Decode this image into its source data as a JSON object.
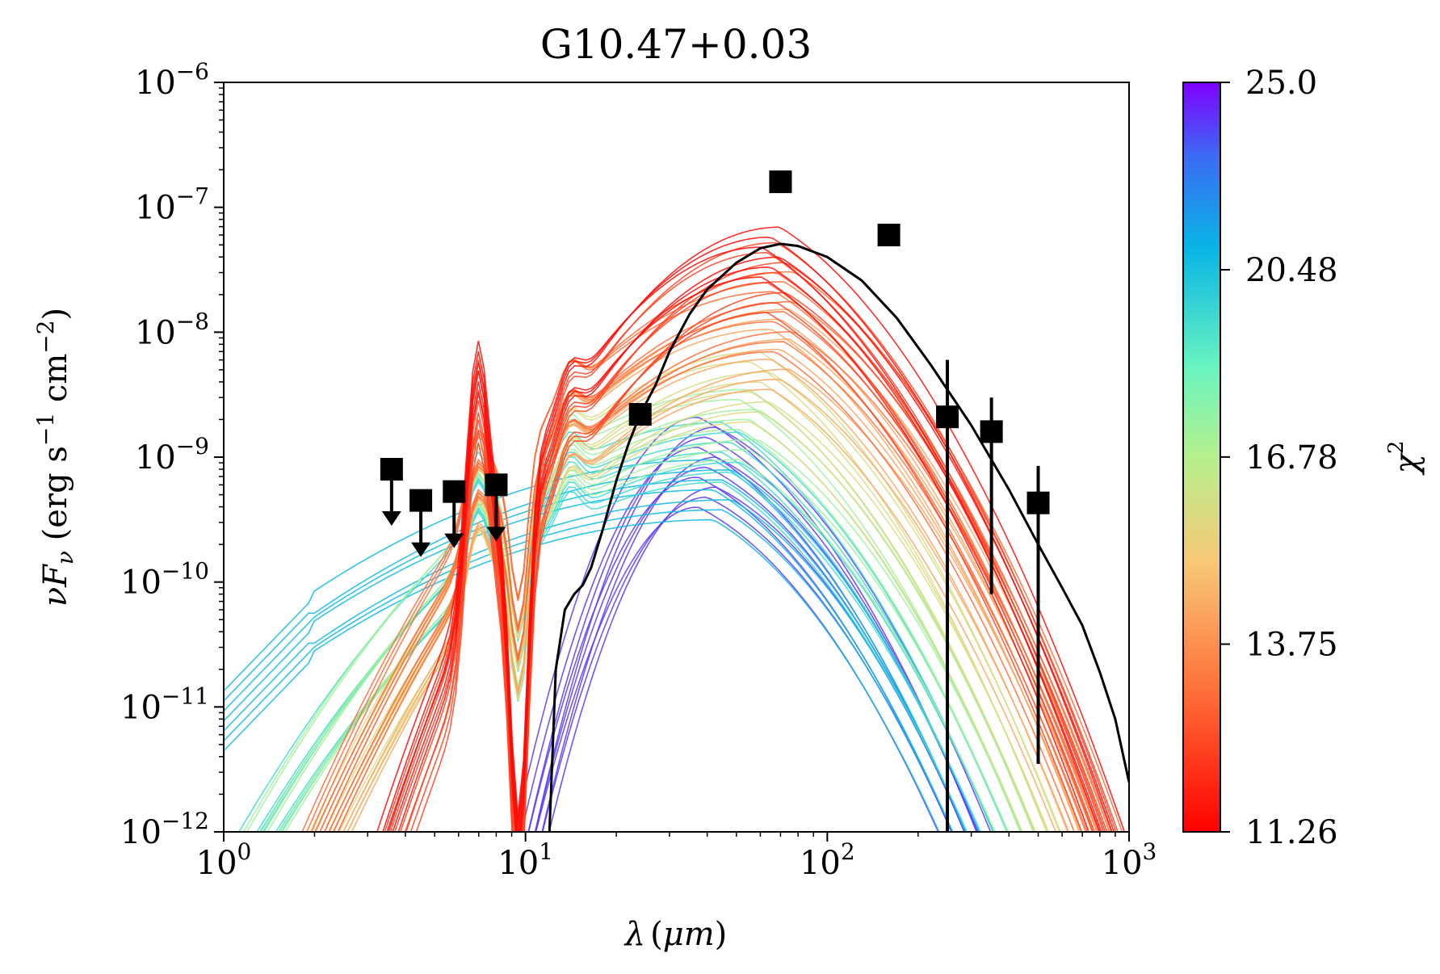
{
  "chart_data": {
    "type": "line",
    "title": "G10.47+0.03",
    "x_scale": "log",
    "y_scale": "log",
    "xlim": [
      1,
      1000
    ],
    "ylim": [
      1e-12,
      1e-06
    ],
    "xlabel_parts": {
      "symbol": "λ",
      "open": "(",
      "unit": "μm",
      "close": ")"
    },
    "ylabel_parts": {
      "nu": "ν",
      "F": "F",
      "sub": "ν",
      "open": " (erg s",
      "exp1": "−1",
      "mid": " cm",
      "exp2": "−2",
      "close": ")"
    },
    "x_ticks": [
      {
        "base": "10",
        "exp": "0",
        "value": 1
      },
      {
        "base": "10",
        "exp": "1",
        "value": 10
      },
      {
        "base": "10",
        "exp": "2",
        "value": 100
      },
      {
        "base": "10",
        "exp": "3",
        "value": 1000
      }
    ],
    "y_ticks": [
      {
        "base": "10",
        "exp": "−12",
        "value": 1e-12
      },
      {
        "base": "10",
        "exp": "−11",
        "value": 1e-11
      },
      {
        "base": "10",
        "exp": "−10",
        "value": 1e-10
      },
      {
        "base": "10",
        "exp": "−9",
        "value": 1e-09
      },
      {
        "base": "10",
        "exp": "−8",
        "value": 1e-08
      },
      {
        "base": "10",
        "exp": "−7",
        "value": 1e-07
      },
      {
        "base": "10",
        "exp": "−6",
        "value": 1e-06
      }
    ],
    "colorbar": {
      "label_base": "χ",
      "label_exp": "2",
      "colormap": "rainbow",
      "vmin": 11.26,
      "vmax": 25.0,
      "ticks": [
        "25.0",
        "20.48",
        "16.78",
        "13.75",
        "11.26"
      ]
    },
    "observed": [
      {
        "x": 3.6,
        "y": 8e-10,
        "upper_limit": true
      },
      {
        "x": 4.5,
        "y": 4.5e-10,
        "upper_limit": true
      },
      {
        "x": 5.8,
        "y": 5.3e-10,
        "upper_limit": true
      },
      {
        "x": 8.0,
        "y": 6e-10,
        "upper_limit": true
      },
      {
        "x": 24,
        "y": 2.2e-09,
        "upper_limit": false
      },
      {
        "x": 70,
        "y": 1.6e-07,
        "upper_limit": false
      },
      {
        "x": 160,
        "y": 6e-08,
        "upper_limit": false
      },
      {
        "x": 250,
        "y": 2.1e-09,
        "yerr_low": 1e-12,
        "yerr_high": 6e-09,
        "upper_limit": false
      },
      {
        "x": 350,
        "y": 1.6e-09,
        "yerr_low": 8e-11,
        "yerr_high": 3e-09,
        "upper_limit": false
      },
      {
        "x": 500,
        "y": 4.3e-10,
        "yerr_low": 3.5e-12,
        "yerr_high": 8.5e-10,
        "upper_limit": false
      }
    ],
    "best_fit": {
      "color": "#000000",
      "points": [
        [
          12.0,
          1e-12
        ],
        [
          12.6,
          2e-11
        ],
        [
          13.5,
          6e-11
        ],
        [
          14.5,
          8e-11
        ],
        [
          15.5,
          9.5e-11
        ],
        [
          16.5,
          1.3e-10
        ],
        [
          18,
          2.6e-10
        ],
        [
          20,
          6.5e-10
        ],
        [
          22,
          1.3e-09
        ],
        [
          24,
          2.2e-09
        ],
        [
          27,
          3.8e-09
        ],
        [
          30,
          7e-09
        ],
        [
          35,
          1.4e-08
        ],
        [
          40,
          2.2e-08
        ],
        [
          50,
          3.6e-08
        ],
        [
          60,
          4.7e-08
        ],
        [
          70,
          5.1e-08
        ],
        [
          80,
          4.9e-08
        ],
        [
          100,
          4e-08
        ],
        [
          130,
          2.6e-08
        ],
        [
          170,
          1.3e-08
        ],
        [
          220,
          5.5e-09
        ],
        [
          300,
          1.8e-09
        ],
        [
          400,
          5.5e-10
        ],
        [
          500,
          2e-10
        ],
        [
          600,
          9e-11
        ],
        [
          700,
          4.5e-11
        ],
        [
          800,
          1.9e-11
        ],
        [
          900,
          8e-12
        ],
        [
          1000,
          2.5e-12
        ]
      ]
    },
    "model_families": [
      {
        "chi2": 11.4,
        "kind": "hot",
        "peak_x": 65,
        "peak_y": 4.8e-08,
        "count": 6
      },
      {
        "chi2": 12.3,
        "kind": "hot",
        "peak_x": 68,
        "peak_y": 3e-08,
        "count": 8
      },
      {
        "chi2": 13.0,
        "kind": "warm",
        "peak_x": 72,
        "peak_y": 1.6e-08,
        "count": 9
      },
      {
        "chi2": 14.2,
        "kind": "warm",
        "peak_x": 70,
        "peak_y": 8e-09,
        "count": 9
      },
      {
        "chi2": 15.8,
        "kind": "warm",
        "peak_x": 60,
        "peak_y": 4e-09,
        "count": 8
      },
      {
        "chi2": 17.3,
        "kind": "cool",
        "peak_x": 55,
        "peak_y": 2e-09,
        "count": 8
      },
      {
        "chi2": 19.5,
        "kind": "cool",
        "peak_x": 48,
        "peak_y": 1.2e-09,
        "count": 7
      },
      {
        "chi2": 20.8,
        "kind": "flat",
        "peak_x": 45,
        "peak_y": 6e-10,
        "count": 7
      },
      {
        "chi2": 24.0,
        "kind": "steep",
        "peak_x": 40,
        "peak_y": 1e-09,
        "count": 10
      }
    ]
  }
}
